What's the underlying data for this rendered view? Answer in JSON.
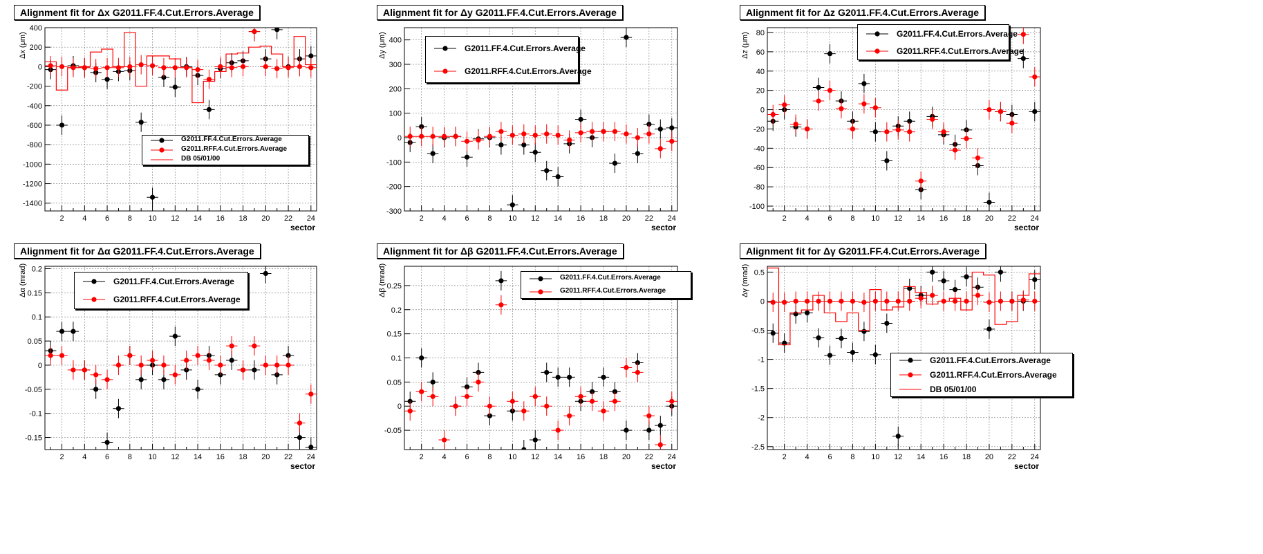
{
  "colors": {
    "ff": "#000000",
    "rff": "#ff0000",
    "db": "#ff0000",
    "grid": "#888888"
  },
  "chart_data": [
    {
      "type": "scatter",
      "title": "Alignment fit for Δx G2011.FF.4.Cut.Errors.Average",
      "xlabel": "sector",
      "ylabel": "Δx (μm)",
      "xlim": [
        0.5,
        24.5
      ],
      "ylim": [
        -1480,
        400
      ],
      "xticks": [
        2,
        4,
        6,
        8,
        10,
        12,
        14,
        16,
        18,
        20,
        22,
        24
      ],
      "xtick_labels": [
        "2",
        "4",
        "6",
        "8",
        "10",
        "12",
        "14",
        "16",
        "18",
        "20",
        "22",
        "24"
      ],
      "yticks": [
        -1400,
        -1200,
        -1000,
        -800,
        -600,
        -400,
        -200,
        0,
        200,
        400
      ],
      "ytick_labels": [
        "-1400",
        "-1200",
        "-1000",
        "-800",
        "-600",
        "-400",
        "-200",
        "0",
        "200",
        "400"
      ],
      "legend_position": "bottom-right",
      "series": [
        {
          "name": "G2011.FF.4.Cut.Errors.Average",
          "kind": "points",
          "color": "#000000",
          "x": [
            1,
            2,
            3,
            4,
            5,
            6,
            7,
            8,
            9,
            10,
            11,
            12,
            13,
            14,
            15,
            16,
            17,
            18,
            19,
            20,
            21,
            22,
            23,
            24
          ],
          "y": [
            -30,
            -600,
            10,
            -10,
            -60,
            -130,
            -50,
            -40,
            -570,
            -1340,
            -110,
            -210,
            0,
            -90,
            -440,
            -20,
            40,
            60,
            360,
            80,
            380,
            0,
            80,
            110
          ]
        },
        {
          "name": "G2011.RFF.4.Cut.Errors.Average",
          "kind": "points",
          "color": "#ff0000",
          "x": [
            1,
            2,
            3,
            4,
            5,
            6,
            7,
            8,
            9,
            10,
            11,
            12,
            13,
            14,
            15,
            16,
            17,
            18,
            19,
            20,
            21,
            22,
            23,
            24
          ],
          "y": [
            10,
            0,
            -10,
            -10,
            -20,
            -10,
            -10,
            0,
            20,
            10,
            -10,
            -10,
            -10,
            -30,
            -130,
            0,
            -10,
            0,
            360,
            0,
            -20,
            -10,
            0,
            -10
          ]
        },
        {
          "name": "DB 05/01/00",
          "kind": "step",
          "color": "#ff0000",
          "x": [
            1,
            2,
            3,
            4,
            5,
            6,
            7,
            8,
            9,
            10,
            11,
            12,
            13,
            14,
            15,
            16,
            17,
            18,
            19,
            20,
            21,
            22,
            23,
            24
          ],
          "y": [
            50,
            -240,
            -10,
            0,
            150,
            180,
            0,
            350,
            -200,
            110,
            110,
            80,
            -10,
            -370,
            -150,
            -50,
            130,
            140,
            200,
            210,
            130,
            0,
            310,
            20
          ]
        }
      ]
    },
    {
      "type": "scatter",
      "title": "Alignment fit for Δy G2011.FF.4.Cut.Errors.Average",
      "xlabel": "sector",
      "ylabel": "Δy (μm)",
      "xlim": [
        0.5,
        24.5
      ],
      "ylim": [
        -300,
        450
      ],
      "xticks": [
        2,
        4,
        6,
        8,
        10,
        12,
        14,
        16,
        18,
        20,
        22,
        24
      ],
      "xtick_labels": [
        "2",
        "4",
        "6",
        "8",
        "10",
        "12",
        "14",
        "16",
        "18",
        "20",
        "22",
        "24"
      ],
      "yticks": [
        -300,
        -200,
        -100,
        0,
        100,
        200,
        300,
        400
      ],
      "ytick_labels": [
        "-300",
        "-200",
        "-100",
        "0",
        "100",
        "200",
        "300",
        "400"
      ],
      "legend_position": "top-left",
      "series": [
        {
          "name": "G2011.FF.4.Cut.Errors.Average",
          "kind": "points",
          "color": "#000000",
          "x": [
            1,
            2,
            3,
            4,
            5,
            6,
            7,
            8,
            9,
            10,
            11,
            12,
            13,
            14,
            15,
            16,
            17,
            18,
            19,
            20,
            21,
            22,
            23,
            24
          ],
          "y": [
            -20,
            45,
            -65,
            0,
            5,
            -80,
            -5,
            0,
            -30,
            -275,
            -30,
            -60,
            -135,
            -160,
            -25,
            75,
            0,
            25,
            -105,
            410,
            -65,
            55,
            35,
            40
          ]
        },
        {
          "name": "G2011.RFF.4.Cut.Errors.Average",
          "kind": "points",
          "color": "#ff0000",
          "x": [
            1,
            2,
            3,
            4,
            5,
            6,
            7,
            8,
            9,
            10,
            11,
            12,
            13,
            14,
            15,
            16,
            17,
            18,
            19,
            20,
            21,
            22,
            23,
            24
          ],
          "y": [
            5,
            5,
            5,
            5,
            5,
            -15,
            -10,
            5,
            25,
            10,
            15,
            10,
            15,
            10,
            -10,
            20,
            25,
            25,
            25,
            15,
            0,
            15,
            -45,
            -15
          ]
        }
      ]
    },
    {
      "type": "scatter",
      "title": "Alignment fit for Δz G2011.FF.4.Cut.Errors.Average",
      "xlabel": "sector",
      "ylabel": "Δz (μm)",
      "xlim": [
        0.5,
        24.5
      ],
      "ylim": [
        -105,
        85
      ],
      "xticks": [
        2,
        4,
        6,
        8,
        10,
        12,
        14,
        16,
        18,
        20,
        22,
        24
      ],
      "xtick_labels": [
        "2",
        "4",
        "6",
        "8",
        "10",
        "12",
        "14",
        "16",
        "18",
        "20",
        "22",
        "24"
      ],
      "yticks": [
        -100,
        -80,
        -60,
        -40,
        -20,
        0,
        20,
        40,
        60,
        80
      ],
      "ytick_labels": [
        "-100",
        "-80",
        "-60",
        "-40",
        "-20",
        "0",
        "20",
        "40",
        "60",
        "80"
      ],
      "legend_position": "top-center",
      "series": [
        {
          "name": "G2011.FF.4.Cut.Errors.Average",
          "kind": "points",
          "color": "#000000",
          "x": [
            1,
            2,
            3,
            4,
            5,
            6,
            7,
            8,
            9,
            10,
            11,
            12,
            13,
            14,
            15,
            16,
            17,
            18,
            19,
            20,
            21,
            22,
            23,
            24
          ],
          "y": [
            -12,
            0,
            -18,
            -20,
            23,
            58,
            9,
            -12,
            27,
            -23,
            -53,
            -17,
            -12,
            -83,
            -7,
            -26,
            -36,
            -21,
            -58,
            -96,
            -2,
            -5,
            53,
            -2
          ]
        },
        {
          "name": "G2011.RFF.4.Cut.Errors.Average",
          "kind": "points",
          "color": "#ff0000",
          "x": [
            1,
            2,
            3,
            4,
            5,
            6,
            7,
            8,
            9,
            10,
            11,
            12,
            13,
            14,
            15,
            16,
            17,
            18,
            19,
            20,
            21,
            22,
            23,
            24
          ],
          "y": [
            -5,
            5,
            -15,
            -20,
            9,
            20,
            1,
            -20,
            6,
            2,
            -23,
            -21,
            -23,
            -74,
            -10,
            -23,
            -42,
            -30,
            -50,
            0,
            -2,
            -14,
            78,
            34
          ]
        }
      ]
    },
    {
      "type": "scatter",
      "title": "Alignment fit for Δα G2011.FF.4.Cut.Errors.Average",
      "xlabel": "sector",
      "ylabel": "Δα (mrad)",
      "xlim": [
        0.5,
        24.5
      ],
      "ylim": [
        -0.175,
        0.205
      ],
      "xticks": [
        2,
        4,
        6,
        8,
        10,
        12,
        14,
        16,
        18,
        20,
        22,
        24
      ],
      "xtick_labels": [
        "2",
        "4",
        "6",
        "8",
        "10",
        "12",
        "14",
        "16",
        "18",
        "20",
        "22",
        "24"
      ],
      "yticks": [
        -0.15,
        -0.1,
        -0.05,
        0,
        0.05,
        0.1,
        0.15,
        0.2
      ],
      "ytick_labels": [
        "-0.15",
        "-0.1",
        "-0.05",
        "0",
        "0.05",
        "0.1",
        "0.15",
        "0.2"
      ],
      "legend_position": "top-right",
      "series": [
        {
          "name": "G2011.FF.4.Cut.Errors.Average",
          "kind": "points",
          "color": "#000000",
          "x": [
            1,
            2,
            3,
            4,
            5,
            6,
            7,
            8,
            9,
            10,
            11,
            12,
            13,
            14,
            15,
            16,
            17,
            18,
            19,
            20,
            21,
            22,
            23,
            24
          ],
          "y": [
            0.03,
            0.07,
            0.07,
            -0.01,
            -0.05,
            -0.16,
            -0.09,
            0.02,
            -0.03,
            0,
            -0.03,
            0.06,
            -0.01,
            -0.05,
            0.02,
            -0.02,
            0.01,
            -0.01,
            -0.01,
            0.19,
            -0.02,
            0.02,
            -0.15,
            -0.17
          ]
        },
        {
          "name": "G2011.RFF.4.Cut.Errors.Average",
          "kind": "points",
          "color": "#ff0000",
          "x": [
            1,
            2,
            3,
            4,
            5,
            6,
            7,
            8,
            9,
            10,
            11,
            12,
            13,
            14,
            15,
            16,
            17,
            18,
            19,
            20,
            21,
            22,
            23,
            24
          ],
          "y": [
            0.02,
            0.02,
            -0.01,
            -0.01,
            -0.02,
            -0.03,
            0,
            0.02,
            0,
            0.01,
            0,
            -0.02,
            0.01,
            0.02,
            0.01,
            0,
            0.04,
            -0.01,
            0.04,
            0,
            0,
            0,
            -0.12,
            -0.06
          ]
        }
      ]
    },
    {
      "type": "scatter",
      "title": "Alignment fit for Δβ G2011.FF.4.Cut.Errors.Average",
      "xlabel": "sector",
      "ylabel": "Δβ (mrad)",
      "xlim": [
        0.5,
        24.5
      ],
      "ylim": [
        -0.09,
        0.29
      ],
      "xticks": [
        2,
        4,
        6,
        8,
        10,
        12,
        14,
        16,
        18,
        20,
        22,
        24
      ],
      "xtick_labels": [
        "2",
        "4",
        "6",
        "8",
        "10",
        "12",
        "14",
        "16",
        "18",
        "20",
        "22",
        "24"
      ],
      "yticks": [
        -0.05,
        0,
        0.05,
        0.1,
        0.15,
        0.2,
        0.25
      ],
      "ytick_labels": [
        "-0.05",
        "0",
        "0.05",
        "0.1",
        "0.15",
        "0.2",
        "0.25"
      ],
      "legend_position": "top-right",
      "series": [
        {
          "name": "G2011.FF.4.Cut.Errors.Average",
          "kind": "points",
          "color": "#000000",
          "x": [
            1,
            2,
            3,
            5,
            6,
            7,
            8,
            9,
            10,
            11,
            12,
            13,
            14,
            15,
            16,
            17,
            18,
            19,
            20,
            21,
            22,
            23,
            24
          ],
          "y": [
            0.01,
            0.1,
            0.05,
            0,
            0.04,
            0.07,
            -0.02,
            0.26,
            -0.01,
            -0.09,
            -0.07,
            0.07,
            0.06,
            0.06,
            0.01,
            0.03,
            0.06,
            0.03,
            -0.05,
            0.09,
            -0.05,
            -0.04,
            0
          ]
        },
        {
          "name": "G2011.RFF.4.Cut.Errors.Average",
          "kind": "points",
          "color": "#ff0000",
          "x": [
            1,
            2,
            3,
            4,
            5,
            6,
            7,
            8,
            9,
            10,
            11,
            12,
            13,
            14,
            15,
            16,
            17,
            18,
            19,
            20,
            21,
            22,
            23,
            24
          ],
          "y": [
            -0.01,
            0.03,
            0.02,
            -0.07,
            0,
            0.02,
            0.05,
            0,
            0.21,
            0.01,
            -0.01,
            0.02,
            0,
            -0.05,
            -0.02,
            0.02,
            0.01,
            -0.01,
            0.01,
            0.08,
            0.07,
            -0.02,
            -0.08,
            0.01
          ]
        }
      ]
    },
    {
      "type": "scatter",
      "title": "Alignment fit for Δγ G2011.FF.4.Cut.Errors.Average",
      "xlabel": "sector",
      "ylabel": "Δγ (mrad)",
      "xlim": [
        0.5,
        24.5
      ],
      "ylim": [
        -2.55,
        0.6
      ],
      "xticks": [
        2,
        4,
        6,
        8,
        10,
        12,
        14,
        16,
        18,
        20,
        22,
        24
      ],
      "xtick_labels": [
        "2",
        "4",
        "6",
        "8",
        "10",
        "12",
        "14",
        "16",
        "18",
        "20",
        "22",
        "24"
      ],
      "yticks": [
        -2.5,
        -2,
        -1.5,
        -1,
        -0.5,
        0,
        0.5
      ],
      "ytick_labels": [
        "-2.5",
        "-2",
        "-1.5",
        "-1",
        "-0.5",
        "0",
        "0.5"
      ],
      "legend_position": "bottom-right",
      "series": [
        {
          "name": "G2011.FF.4.Cut.Errors.Average",
          "kind": "points",
          "color": "#000000",
          "x": [
            1,
            2,
            3,
            4,
            5,
            6,
            7,
            8,
            9,
            10,
            11,
            12,
            13,
            14,
            15,
            16,
            17,
            18,
            19,
            20,
            21,
            22,
            23,
            24
          ],
          "y": [
            -0.55,
            -0.72,
            -0.22,
            -0.2,
            -0.63,
            -0.93,
            -0.64,
            -0.88,
            -0.52,
            -0.92,
            -0.38,
            -2.32,
            0.22,
            0.1,
            0.5,
            0.35,
            0.2,
            0.42,
            0.24,
            -0.48,
            0.5,
            0,
            0,
            0.37
          ]
        },
        {
          "name": "G2011.RFF.4.Cut.Errors.Average",
          "kind": "points",
          "color": "#ff0000",
          "x": [
            1,
            2,
            3,
            4,
            5,
            6,
            7,
            8,
            9,
            10,
            11,
            12,
            13,
            14,
            15,
            16,
            17,
            18,
            19,
            20,
            21,
            22,
            23,
            24
          ],
          "y": [
            -0.02,
            -0.02,
            0,
            0,
            0,
            0,
            0,
            0,
            -0.02,
            0,
            0,
            0,
            0,
            0.05,
            0.1,
            0,
            0,
            0,
            0.1,
            -0.02,
            0,
            0,
            0.02,
            0
          ]
        },
        {
          "name": "DB 05/01/00",
          "kind": "step",
          "color": "#ff0000",
          "x": [
            1,
            2,
            3,
            4,
            5,
            6,
            7,
            8,
            9,
            10,
            11,
            12,
            13,
            14,
            15,
            16,
            17,
            18,
            19,
            20,
            21,
            22,
            23,
            24
          ],
          "y": [
            0.57,
            -0.75,
            -0.2,
            -0.15,
            0.1,
            -0.2,
            -0.35,
            -0.2,
            -0.5,
            0.2,
            -0.15,
            -0.1,
            0.25,
            0.15,
            -0.05,
            0,
            0.05,
            -0.15,
            0.5,
            0.45,
            -0.4,
            -0.35,
            0.1,
            0.47
          ]
        }
      ]
    }
  ]
}
